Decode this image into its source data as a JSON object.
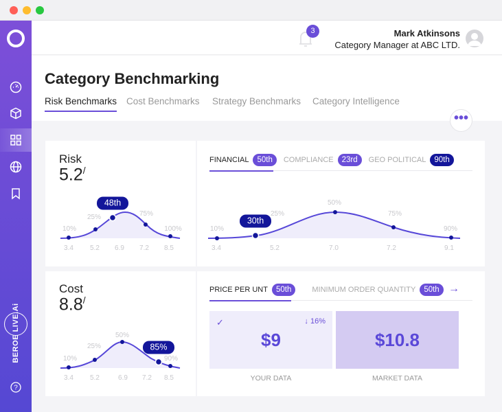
{
  "colors": {
    "accent": "#6a4ed8",
    "dark_badge": "#13169a",
    "sidebar_top": "#7d4fd8",
    "sidebar_bottom": "#5548d3"
  },
  "window": {
    "controls": [
      "close",
      "minimize",
      "maximize"
    ]
  },
  "sidebar": {
    "logo": "circle-logo",
    "items": [
      {
        "icon": "dashboard-icon"
      },
      {
        "icon": "cube-icon"
      },
      {
        "icon": "grid-icon",
        "active": true
      },
      {
        "icon": "globe-icon"
      },
      {
        "icon": "bookmark-icon"
      }
    ],
    "brand": "BEROE LIVE.Ai",
    "help": "help-icon"
  },
  "header": {
    "notifications": "3",
    "user_name": "Mark Atkinsons",
    "user_role": "Category Manager at ABC LTD."
  },
  "page": {
    "title": "Category Benchmarking",
    "tabs": [
      {
        "label": "Risk Benchmarks",
        "active": true
      },
      {
        "label": "Cost Benchmarks"
      },
      {
        "label": "Strategy Benchmarks"
      },
      {
        "label": "Category Intelligence"
      }
    ]
  },
  "risk": {
    "label": "Risk",
    "value": "5.2",
    "suffix": "/",
    "badge": "48th",
    "chart": {
      "percent_labels": [
        "10%",
        "25%",
        "75%",
        "100%"
      ],
      "x_labels": [
        "3.4",
        "5.2",
        "6.9",
        "7.2",
        "8.5"
      ]
    },
    "tabs": [
      {
        "label": "FINANCIAL",
        "badge": "50th",
        "active": true
      },
      {
        "label": "COMPLIANCE",
        "badge": "23rd"
      },
      {
        "label": "GEO POLITICAL",
        "badge": "90th"
      }
    ],
    "detail_chart": {
      "badge": "30th",
      "percent_labels": [
        "10%",
        "25%",
        "50%",
        "75%",
        "90%"
      ],
      "x_labels": [
        "3.4",
        "5.2",
        "7.0",
        "7.2",
        "9.1"
      ]
    }
  },
  "cost": {
    "label": "Cost",
    "value": "8.8",
    "suffix": "/",
    "badge": "85%",
    "chart": {
      "percent_labels": [
        "10%",
        "25%",
        "50%",
        "90%"
      ],
      "x_labels": [
        "3.4",
        "5.2",
        "6.9",
        "7.2",
        "8.5"
      ]
    },
    "tabs": [
      {
        "label": "PRICE PER UNT",
        "badge": "50th",
        "active": true
      },
      {
        "label": "MINIMUM ORDER QUANTITY",
        "badge": "50th"
      }
    ],
    "your_data": {
      "value": "$9",
      "change": "16%",
      "label": "YOUR DATA"
    },
    "market_data": {
      "value": "$10.8",
      "label": "MARKET DATA"
    }
  }
}
